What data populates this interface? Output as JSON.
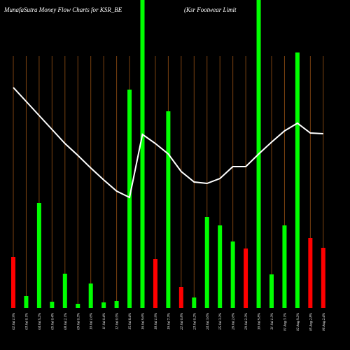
{
  "chart_data": {
    "type": "bar",
    "title": "MunafaSutra  Money Flow  Charts for KSR_BE",
    "subtitle": "(Ksr Footwear Limit",
    "categories": [
      "02 Jul 1.9%",
      "03 Jul 0.1%",
      "04 Jul 5.2%",
      "05 Jul 0.4%",
      "08 Jul 2.1%",
      "09 Jul 0.3%",
      "10 Jul 1.6%",
      "11 Jul 0.4%",
      "12 Jul 0.5%",
      "15 Jul 8.4%",
      "16 Jul 9.6%",
      "18 Jul 1.9%",
      "19 Jul 7.3%",
      "22 Jul 0.8%",
      "23 Jul 0.2%",
      "24 Jul 3.6%",
      "25 Jul 3.2%",
      "26 Jul 2.6%",
      "29 Jul 2.3%",
      "30 Jul 9.8%",
      "31 Jul 1.3%",
      "01 Aug 3.1%",
      "02 Aug 9.2%",
      "05 Aug 2.8%",
      "06 Aug 2.4%"
    ],
    "values": [
      73,
      17,
      150,
      9,
      49,
      6,
      35,
      8,
      10,
      312,
      460,
      70,
      281,
      30,
      15,
      130,
      118,
      95,
      85,
      460,
      48,
      118,
      365,
      100,
      86
    ],
    "colors": [
      "#ff0000",
      "#00ff00",
      "#00ff00",
      "#00ff00",
      "#00ff00",
      "#00ff00",
      "#00ff00",
      "#00ff00",
      "#00ff00",
      "#00ff00",
      "#00ff00",
      "#ff0000",
      "#00ff00",
      "#ff0000",
      "#00ff00",
      "#00ff00",
      "#00ff00",
      "#00ff00",
      "#ff0000",
      "#00ff00",
      "#00ff00",
      "#00ff00",
      "#00ff00",
      "#ff0000",
      "#ff0000"
    ],
    "line": {
      "color": "#ffffff",
      "values": [
        315,
        295,
        275,
        255,
        235,
        218,
        200,
        183,
        167,
        158,
        248,
        235,
        220,
        195,
        180,
        178,
        185,
        202,
        202,
        220,
        237,
        253,
        264,
        250,
        249
      ]
    },
    "ylim": [
      0,
      440
    ],
    "grid": true
  }
}
